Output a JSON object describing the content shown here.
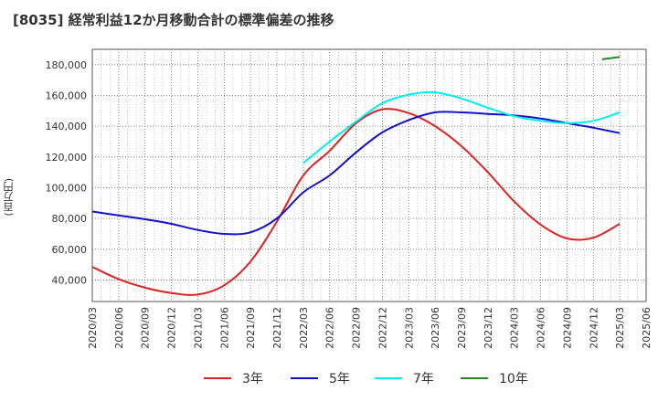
{
  "header": {
    "title": "[8035]  経常利益12か月移動合計の標準偏差の推移"
  },
  "chart_data": {
    "type": "line",
    "title": "[8035]  経常利益12か月移動合計の標準偏差の推移",
    "xlabel": "",
    "ylabel": "(百万円)",
    "ylim": [
      26000,
      190000
    ],
    "yticks": [
      40000,
      60000,
      80000,
      100000,
      120000,
      140000,
      160000,
      180000
    ],
    "ytick_labels": [
      "40,000",
      "60,000",
      "80,000",
      "100,000",
      "120,000",
      "140,000",
      "160,000",
      "180,000"
    ],
    "xticks": [
      "2020/03",
      "2020/06",
      "2020/09",
      "2020/12",
      "2021/03",
      "2021/06",
      "2021/09",
      "2021/12",
      "2022/03",
      "2022/06",
      "2022/09",
      "2022/12",
      "2023/03",
      "2023/06",
      "2023/09",
      "2023/12",
      "2024/03",
      "2024/06",
      "2024/09",
      "2024/12",
      "2025/03",
      "2025/06"
    ],
    "grid": true,
    "legend_position": "bottom",
    "series": [
      {
        "name": "3年",
        "color": "#dd2222",
        "points": [
          [
            "2020/03",
            48500
          ],
          [
            "2020/06",
            40500
          ],
          [
            "2020/09",
            35000
          ],
          [
            "2020/12",
            31500
          ],
          [
            "2021/03",
            30500
          ],
          [
            "2021/06",
            36500
          ],
          [
            "2021/09",
            52000
          ],
          [
            "2021/12",
            78000
          ],
          [
            "2022/03",
            108000
          ],
          [
            "2022/06",
            124000
          ],
          [
            "2022/09",
            142000
          ],
          [
            "2022/12",
            151000
          ],
          [
            "2023/03",
            148500
          ],
          [
            "2023/06",
            140000
          ],
          [
            "2023/09",
            127000
          ],
          [
            "2023/12",
            110000
          ],
          [
            "2024/03",
            91000
          ],
          [
            "2024/06",
            76000
          ],
          [
            "2024/09",
            67000
          ],
          [
            "2024/12",
            67500
          ],
          [
            "2025/03",
            76500
          ]
        ]
      },
      {
        "name": "5年",
        "color": "#1111cc",
        "points": [
          [
            "2020/03",
            84500
          ],
          [
            "2020/06",
            82000
          ],
          [
            "2020/09",
            79500
          ],
          [
            "2020/12",
            76500
          ],
          [
            "2021/03",
            72500
          ],
          [
            "2021/06",
            70000
          ],
          [
            "2021/09",
            71000
          ],
          [
            "2021/12",
            80000
          ],
          [
            "2022/03",
            97000
          ],
          [
            "2022/06",
            108000
          ],
          [
            "2022/09",
            123000
          ],
          [
            "2022/12",
            136000
          ],
          [
            "2023/03",
            144000
          ],
          [
            "2023/06",
            149000
          ],
          [
            "2023/09",
            149000
          ],
          [
            "2023/12",
            148000
          ],
          [
            "2024/03",
            147000
          ],
          [
            "2024/06",
            145000
          ],
          [
            "2024/09",
            142000
          ],
          [
            "2024/12",
            139000
          ],
          [
            "2025/03",
            135500
          ]
        ]
      },
      {
        "name": "7年",
        "color": "#00eeee",
        "points": [
          [
            "2022/03",
            116000
          ],
          [
            "2022/06",
            130000
          ],
          [
            "2022/09",
            143000
          ],
          [
            "2022/12",
            155000
          ],
          [
            "2023/03",
            160500
          ],
          [
            "2023/06",
            162000
          ],
          [
            "2023/09",
            158000
          ],
          [
            "2023/12",
            152000
          ],
          [
            "2024/03",
            146500
          ],
          [
            "2024/06",
            143500
          ],
          [
            "2024/09",
            142000
          ],
          [
            "2024/12",
            143500
          ],
          [
            "2025/03",
            149000
          ]
        ]
      },
      {
        "name": "10年",
        "color": "#228822",
        "points": [
          [
            "2025/01",
            183500
          ],
          [
            "2025/03",
            185000
          ]
        ]
      }
    ]
  }
}
